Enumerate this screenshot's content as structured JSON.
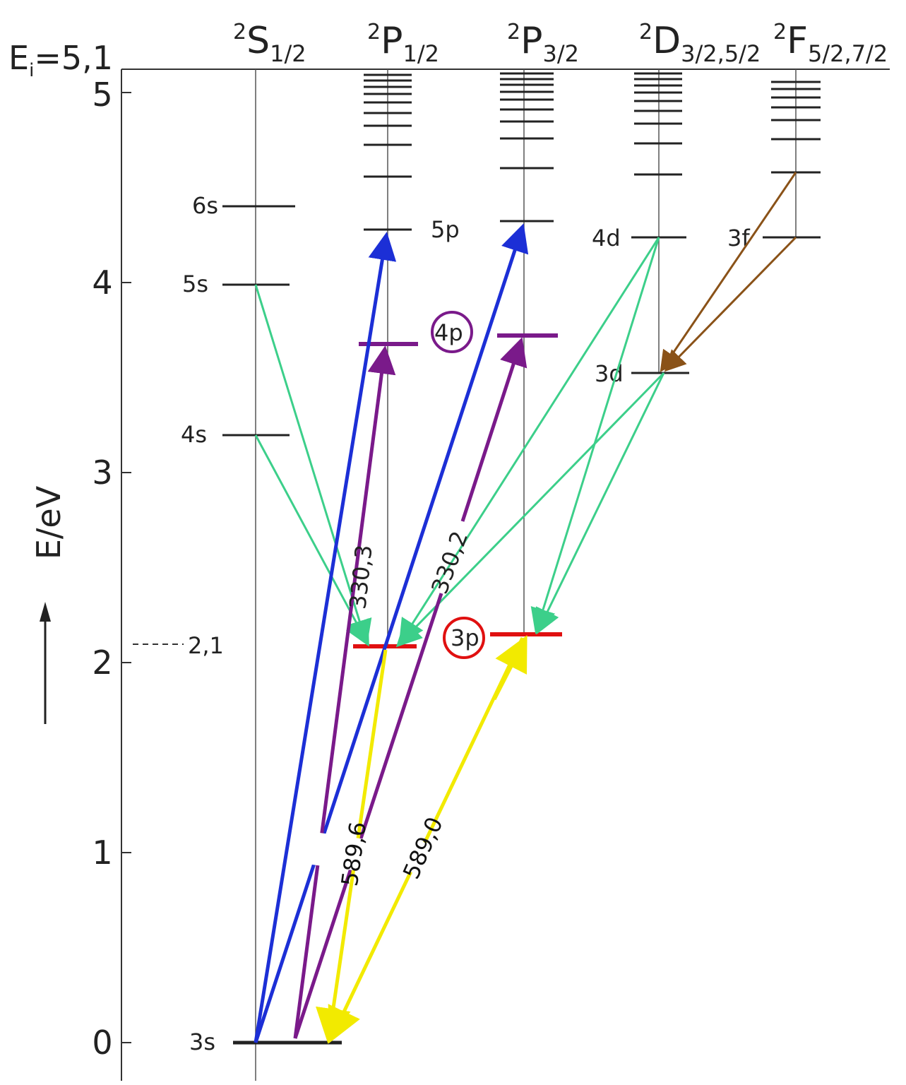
{
  "ionization": "E",
  "ionization_sub": "i",
  "ionization_value": "=5,1",
  "axis": {
    "label": "E/eV",
    "arrow": "→",
    "ticks": [
      "0",
      "1",
      "2",
      "3",
      "4",
      "5"
    ],
    "marker_label": "2,1"
  },
  "terms": [
    {
      "sup": "2",
      "main": "S",
      "sub": "1/2"
    },
    {
      "sup": "2",
      "main": "P",
      "sub": "1/2"
    },
    {
      "sup": "2",
      "main": "P",
      "sub": "3/2"
    },
    {
      "sup": "2",
      "main": "D",
      "sub": "3/2,5/2"
    },
    {
      "sup": "2",
      "main": "F",
      "sub": "5/2,7/2"
    }
  ],
  "levels": {
    "s": [
      "3s",
      "4s",
      "5s",
      "6s"
    ],
    "p": [
      "3p",
      "4p",
      "5p"
    ],
    "d": [
      "3d",
      "4d"
    ],
    "f": [
      "3f"
    ]
  },
  "wavelengths": {
    "d1": "589,6",
    "d2": "589,0",
    "uv1": "330,3",
    "uv2": "330,2"
  },
  "colors": {
    "yellow": "#f2ea00",
    "purple": "#7a1a8a",
    "blue": "#1c2fd6",
    "green": "#3ccf8a",
    "brown": "#8a5218",
    "red": "#e01010",
    "circle_purple": "#7a1a8a",
    "circle_red": "#e01010"
  }
}
